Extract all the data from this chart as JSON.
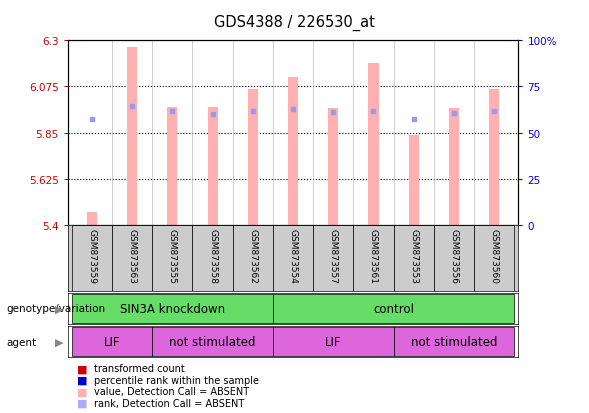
{
  "title": "GDS4388 / 226530_at",
  "samples": [
    "GSM873559",
    "GSM873563",
    "GSM873555",
    "GSM873558",
    "GSM873562",
    "GSM873554",
    "GSM873557",
    "GSM873561",
    "GSM873553",
    "GSM873556",
    "GSM873560"
  ],
  "bar_values": [
    5.46,
    6.27,
    5.975,
    5.975,
    6.065,
    6.12,
    5.97,
    6.19,
    5.84,
    5.97,
    6.065
  ],
  "rank_values": [
    0.575,
    0.645,
    0.615,
    0.598,
    0.615,
    0.625,
    0.61,
    0.615,
    0.575,
    0.605,
    0.615
  ],
  "y_min": 5.4,
  "y_max": 6.3,
  "y_ticks": [
    5.4,
    5.625,
    5.85,
    6.075,
    6.3
  ],
  "y_tick_labels": [
    "5.4",
    "5.625",
    "5.85",
    "6.075",
    "6.3"
  ],
  "right_y_ticks": [
    0,
    25,
    50,
    75,
    100
  ],
  "right_y_tick_labels": [
    "0",
    "25",
    "50",
    "75",
    "100%"
  ],
  "bar_color": "#ffb0b0",
  "rank_color": "#9999ee",
  "ylabel_color": "#cc0000",
  "right_ylabel_color": "#0000cc",
  "plot_bg_color": "#ffffff",
  "sample_box_color": "#cccccc",
  "geno_groups": [
    {
      "label": "SIN3A knockdown",
      "start": 0,
      "end": 4,
      "color": "#66dd66"
    },
    {
      "label": "control",
      "start": 5,
      "end": 10,
      "color": "#66dd66"
    }
  ],
  "agent_groups": [
    {
      "label": "LIF",
      "start": 0,
      "end": 1,
      "color": "#dd66dd"
    },
    {
      "label": "not stimulated",
      "start": 2,
      "end": 4,
      "color": "#dd66dd"
    },
    {
      "label": "LIF",
      "start": 5,
      "end": 7,
      "color": "#dd66dd"
    },
    {
      "label": "not stimulated",
      "start": 8,
      "end": 10,
      "color": "#dd66dd"
    }
  ],
  "legend_colors": [
    "#cc0000",
    "#0000cc",
    "#ffb0b0",
    "#aaaaff"
  ],
  "legend_labels": [
    "transformed count",
    "percentile rank within the sample",
    "value, Detection Call = ABSENT",
    "rank, Detection Call = ABSENT"
  ]
}
